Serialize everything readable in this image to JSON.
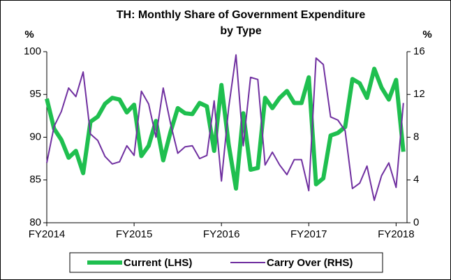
{
  "chart_data": {
    "type": "line",
    "title": [
      "TH: Monthly Share of Government Expenditure",
      "by Type"
    ],
    "ylabel": "%",
    "y2label": "%",
    "x": [
      0,
      1,
      2,
      3,
      4,
      5,
      6,
      7,
      8,
      9,
      10,
      11,
      12,
      13,
      14,
      15,
      16,
      17,
      18,
      19,
      20,
      21,
      22,
      23,
      24,
      25,
      26,
      27,
      28,
      29,
      30,
      31,
      32,
      33,
      34,
      35,
      36,
      37,
      38,
      39,
      40,
      41,
      42,
      43,
      44,
      45,
      46,
      47,
      48,
      49
    ],
    "xlim": [
      0,
      49.5
    ],
    "xticks": [
      {
        "value": 0,
        "label": "FY2014"
      },
      {
        "value": 12,
        "label": "FY2015"
      },
      {
        "value": 24,
        "label": "FY2016"
      },
      {
        "value": 36,
        "label": "FY2017"
      },
      {
        "value": 48,
        "label": "FY2018"
      }
    ],
    "ylim": [
      80,
      100
    ],
    "yticks": [
      80,
      85,
      90,
      95,
      100
    ],
    "y2lim": [
      0,
      16
    ],
    "y2ticks": [
      0,
      4,
      8,
      12,
      16
    ],
    "legend": "bottom",
    "series": [
      {
        "name": "Current (LHS)",
        "color": "#1fbf4f",
        "width": 6,
        "values": [
          94.5,
          91,
          89.7,
          87.6,
          88.4,
          85.8,
          91.8,
          92.4,
          93.9,
          94.6,
          94.4,
          92.9,
          93.8,
          87.8,
          89.0,
          91.9,
          87.3,
          90.6,
          93.4,
          92.8,
          92.7,
          94.0,
          93.6,
          88.4,
          96.1,
          89.1,
          84.0,
          92.8,
          86.2,
          86.4,
          94.6,
          93.4,
          94.6,
          95.4,
          94.0,
          94.0,
          97.0,
          84.5,
          85.2,
          90.2,
          90.5,
          91.2,
          96.8,
          96.3,
          94.6,
          98.0,
          95.8,
          94.4,
          96.7,
          88.3
        ]
      },
      {
        "name": "Carry Over (RHS)",
        "color": "#7030a0",
        "width": 2,
        "axis": "y2",
        "values": [
          5.6,
          9,
          10.4,
          12.6,
          11.8,
          14.1,
          8.3,
          7.7,
          6.2,
          5.5,
          5.7,
          7.2,
          6.3,
          12.3,
          11.1,
          8.0,
          12.6,
          9.3,
          6.5,
          7.1,
          7.2,
          6.0,
          6.3,
          11.4,
          3.9,
          10.8,
          15.7,
          7.2,
          13.6,
          13.4,
          5.4,
          6.6,
          5.4,
          4.5,
          5.9,
          5.9,
          3.0,
          15.4,
          14.8,
          9.9,
          9.6,
          8.6,
          3.2,
          3.7,
          5.3,
          2.1,
          4.4,
          5.6,
          3.3,
          11.2
        ]
      }
    ]
  }
}
